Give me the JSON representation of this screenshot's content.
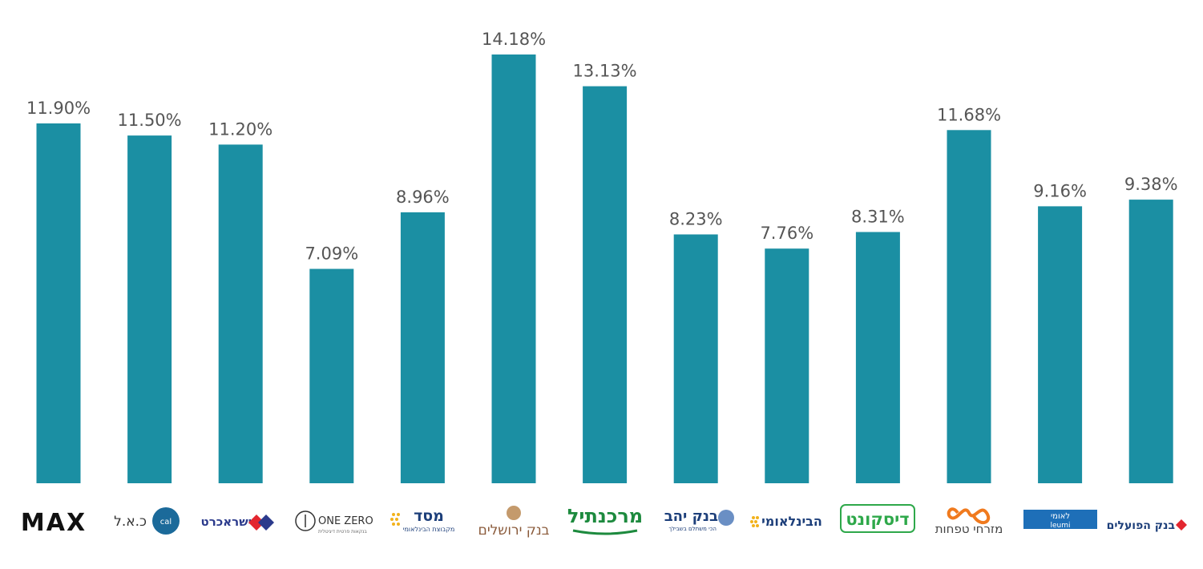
{
  "chart_data": {
    "type": "bar",
    "title": "",
    "xlabel": "",
    "ylabel": "",
    "ylim": [
      0,
      14.18
    ],
    "grid": false,
    "legend": "none",
    "bar_color": "#1b8fa3",
    "categories": [
      "MAX",
      "כ.א.ל",
      "ישראכרט",
      "ONE ZERO",
      "מסד",
      "בנק ירושלים",
      "מרכנתיל",
      "בנק יהב",
      "הבינלאומי",
      "דיסקונט",
      "מזרחי טפחות",
      "לאומי",
      "בנק הפועלים"
    ],
    "values": [
      11.9,
      11.5,
      11.2,
      7.09,
      8.96,
      14.18,
      13.13,
      8.23,
      7.76,
      8.31,
      11.68,
      9.16,
      9.38
    ],
    "value_labels": [
      "11.90%",
      "11.50%",
      "11.20%",
      "7.09%",
      "8.96%",
      "14.18%",
      "13.13%",
      "8.23%",
      "7.76%",
      "8.31%",
      "11.68%",
      "9.16%",
      "9.38%"
    ]
  },
  "logos": {
    "max": {
      "text": "MAX",
      "color": "#111111"
    },
    "cal": {
      "text": "כ.א.ל",
      "sub": "cal",
      "color": "#1b5a8a"
    },
    "isracard": {
      "text": "ישראכרט",
      "color": "#2b3a8c",
      "accent": "#e3262f"
    },
    "onezero": {
      "text": "ONE ZERO",
      "sub": "בנקאות פרטית דיגיטלית",
      "color": "#333333"
    },
    "masad": {
      "text": "מסד",
      "sub": "מקבוצת הבינלאומי",
      "color": "#1d3f7a",
      "accent": "#f2b21b"
    },
    "jerusalem": {
      "text": "בנק ירושלים",
      "color": "#8a5a3a"
    },
    "mercantile": {
      "text": "מרכנתיל",
      "color": "#1d8a3e"
    },
    "yahav": {
      "text": "בנק יהב",
      "sub": "הכי משתלם בשבילך",
      "color": "#1d3f7a"
    },
    "fibi": {
      "text": "הבינלאומי",
      "color": "#1d3f7a",
      "accent": "#f2b21b"
    },
    "discount": {
      "text": "דיסקונט",
      "color": "#2ea84a"
    },
    "mizrahi": {
      "text": "מזרחי טפחות",
      "color": "#444444",
      "accent": "#f07a1e"
    },
    "leumi": {
      "text": "לאומי",
      "sub": "leumi",
      "color": "#1e6fb8"
    },
    "hapoalim": {
      "text": "בנק הפועלים",
      "color": "#1d3f7a",
      "accent": "#e3262f"
    }
  }
}
